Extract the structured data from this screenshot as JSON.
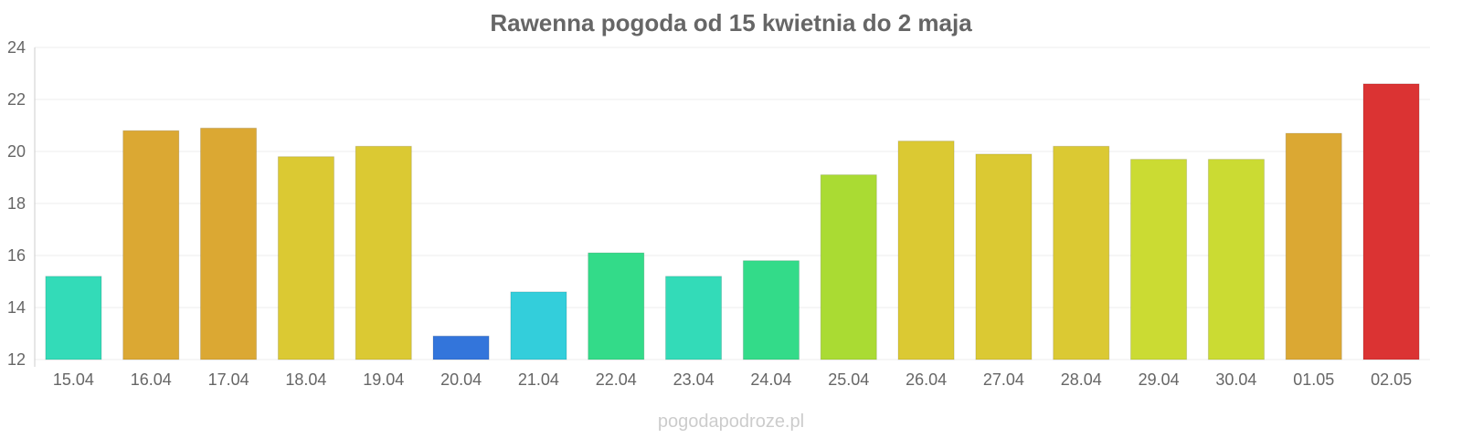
{
  "chart_data": {
    "type": "bar",
    "title": "Rawenna pogoda od 15 kwietnia do 2 maja",
    "xlabel": "",
    "ylabel": "",
    "ylim": [
      12,
      24
    ],
    "yticks": [
      12,
      14,
      16,
      18,
      20,
      22,
      24
    ],
    "grid": true,
    "legend": "none",
    "categories": [
      "15.04",
      "16.04",
      "17.04",
      "18.04",
      "19.04",
      "20.04",
      "21.04",
      "22.04",
      "23.04",
      "24.04",
      "25.04",
      "26.04",
      "27.04",
      "28.04",
      "29.04",
      "30.04",
      "01.05",
      "02.05"
    ],
    "values": [
      15.2,
      20.8,
      20.9,
      19.8,
      20.2,
      12.9,
      14.6,
      16.1,
      15.2,
      15.8,
      19.1,
      20.4,
      19.9,
      20.2,
      19.7,
      19.7,
      20.7,
      22.6
    ],
    "colors": [
      "#33dbb8",
      "#dba833",
      "#dba833",
      "#dbc933",
      "#dbc933",
      "#3375db",
      "#33cedb",
      "#33db89",
      "#33dbb8",
      "#33db89",
      "#aadb33",
      "#dbc933",
      "#dbc933",
      "#dbc933",
      "#cbdb33",
      "#cbdb33",
      "#dba833",
      "#db3333"
    ]
  },
  "watermark": "pogodapodroze.pl"
}
